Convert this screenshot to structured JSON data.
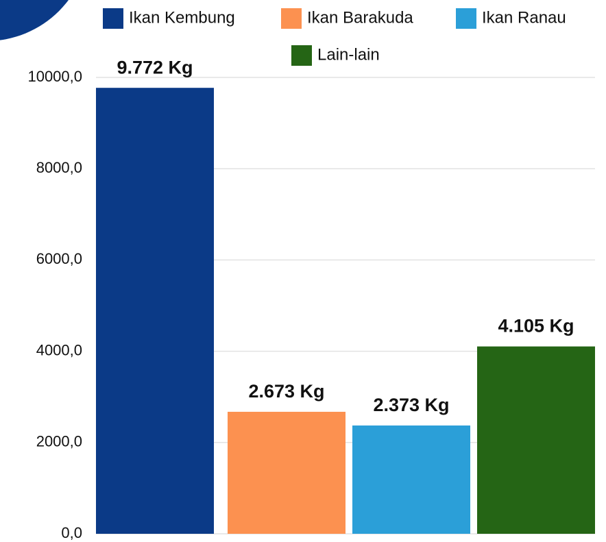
{
  "chart_data": {
    "type": "bar",
    "categories": [
      "Ikan Kembung",
      "Ikan Barakuda",
      "Ikan Ranau",
      "Lain-lain"
    ],
    "values": [
      9772,
      2673,
      2373,
      4105
    ],
    "value_labels": [
      "9.772 Kg",
      "2.673 Kg",
      "2.373 Kg",
      "4.105 Kg"
    ],
    "colors": [
      "#0b3a87",
      "#fc9150",
      "#2b9fd8",
      "#256515"
    ],
    "ylim": [
      0,
      10000
    ],
    "yticks": [
      {
        "value": 0,
        "label": "0,0"
      },
      {
        "value": 2000,
        "label": "2000,0"
      },
      {
        "value": 4000,
        "label": "4000,0"
      },
      {
        "value": 6000,
        "label": "6000,0"
      },
      {
        "value": 8000,
        "label": "8000,0"
      },
      {
        "value": 10000,
        "label": "10000,0"
      }
    ],
    "grid": true
  }
}
